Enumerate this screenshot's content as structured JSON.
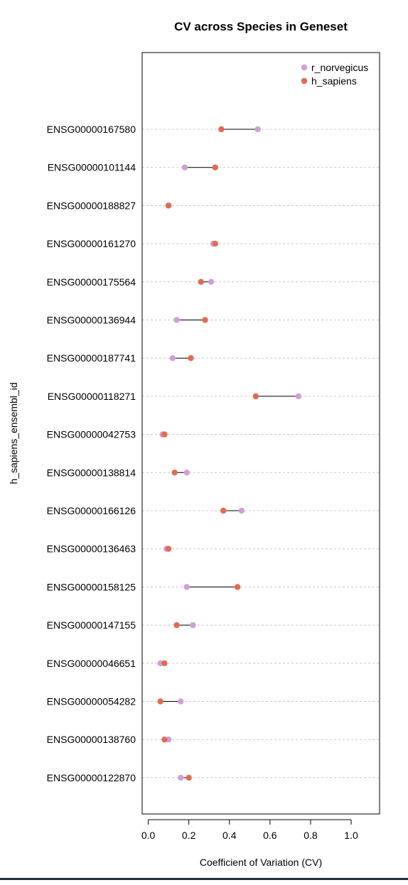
{
  "chart_data": {
    "type": "dumbbell",
    "title": "CV across Species in Geneset",
    "xlabel": "Coefficient of Variation (CV)",
    "ylabel": "h_sapiens_ensembl_id",
    "xlim": [
      -0.03,
      1.14
    ],
    "xticks": [
      0.0,
      0.2,
      0.4,
      0.6,
      0.8,
      1.0
    ],
    "xtick_labels": [
      "0.0",
      "0.2",
      "0.4",
      "0.6",
      "0.8",
      "1.0"
    ],
    "grid": "horizontal dashed",
    "legend": "top-right",
    "categories": [
      "ENSG00000167580",
      "ENSG00000101144",
      "ENSG00000188827",
      "ENSG00000161270",
      "ENSG00000175564",
      "ENSG00000136944",
      "ENSG00000187741",
      "ENSG00000118271",
      "ENSG00000042753",
      "ENSG00000138814",
      "ENSG00000166126",
      "ENSG00000136463",
      "ENSG00000158125",
      "ENSG00000147155",
      "ENSG00000046651",
      "ENSG00000054282",
      "ENSG00000138760",
      "ENSG00000122870"
    ],
    "series": [
      {
        "name": "r_norvegicus",
        "color": "#cf9fd8",
        "values": [
          0.54,
          0.18,
          0.1,
          0.32,
          0.31,
          0.14,
          0.12,
          0.74,
          0.07,
          0.19,
          0.46,
          0.09,
          0.19,
          0.22,
          0.06,
          0.16,
          0.1,
          0.16
        ]
      },
      {
        "name": "h_sapiens",
        "color": "#e46a50",
        "values": [
          0.36,
          0.33,
          0.1,
          0.33,
          0.26,
          0.28,
          0.21,
          0.53,
          0.08,
          0.13,
          0.37,
          0.1,
          0.44,
          0.14,
          0.08,
          0.06,
          0.08,
          0.2
        ]
      }
    ]
  }
}
